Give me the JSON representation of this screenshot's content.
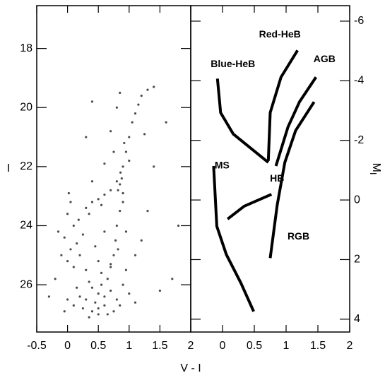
{
  "chart_data": [
    {
      "type": "scatter",
      "ylabel": "I",
      "xlabel": "V - I",
      "color": "#000000",
      "y_inverted": true,
      "xlim": [
        -0.5,
        2
      ],
      "ylim": [
        16.55,
        27.6
      ],
      "xticks": [
        -0.5,
        0,
        0.5,
        1,
        1.5,
        2
      ],
      "yticks": [
        18,
        20,
        22,
        24,
        26
      ],
      "x": [
        0.5,
        0.4,
        0.6,
        0.3,
        0.7,
        0.55,
        0.45,
        0.35,
        0.65,
        0.2,
        0.8,
        0.25,
        0.75,
        0.5,
        0.6,
        0.4,
        0.15,
        0.9,
        0.1,
        0.85,
        0.55,
        0.3,
        0.7,
        1.0,
        0.0,
        0.5,
        0.35,
        0.65,
        1.1,
        -0.05,
        0.0,
        0.05,
        -0.05,
        0.1,
        0.0,
        0.05,
        -0.1,
        0.15,
        0.1,
        0.2,
        0.02,
        0.25,
        -0.15,
        0.18,
        0.3,
        0.4,
        0.5,
        0.6,
        0.7,
        0.35,
        0.55,
        0.85,
        0.82,
        0.88,
        0.8,
        0.9,
        0.86,
        0.85,
        0.8,
        0.78,
        0.75,
        0.9,
        0.82,
        0.7,
        0.95,
        1.1,
        1.2,
        0.95,
        0.9,
        0.95,
        1.0,
        1.05,
        1.1,
        1.15,
        1.2,
        1.3,
        1.0,
        0.92,
        0.75,
        0.7,
        0.8,
        0.85,
        0.6,
        1.25,
        1.4,
        0.4,
        1.6,
        1.5,
        1.7,
        1.3,
        -0.3,
        -0.2,
        0.4,
        1.4,
        0.3,
        1.8,
        0.6,
        0.45,
        0.5
      ],
      "y": [
        26.3,
        26.1,
        26.4,
        26.5,
        26.2,
        26.0,
        26.6,
        25.9,
        25.8,
        26.4,
        26.5,
        26.8,
        26.9,
        26.8,
        26.7,
        26.9,
        26.1,
        26.0,
        26.7,
        26.7,
        25.6,
        25.5,
        25.4,
        26.3,
        26.5,
        27.0,
        27.1,
        27.0,
        26.6,
        26.9,
        25.2,
        24.8,
        24.4,
        24.0,
        23.6,
        23.2,
        25.0,
        24.6,
        25.4,
        25.0,
        22.9,
        24.3,
        24.2,
        23.8,
        23.4,
        23.2,
        23.1,
        22.95,
        22.8,
        23.6,
        23.3,
        22.6,
        22.8,
        22.4,
        22.5,
        22.9,
        22.2,
        23.5,
        24.0,
        24.5,
        25.0,
        23.2,
        24.8,
        25.3,
        24.2,
        25.0,
        24.5,
        25.5,
        22.0,
        21.5,
        21.0,
        20.5,
        20.2,
        19.9,
        19.6,
        19.4,
        21.8,
        21.2,
        21.5,
        20.8,
        20.0,
        19.5,
        21.9,
        20.9,
        19.3,
        19.8,
        20.5,
        26.2,
        25.8,
        23.5,
        26.4,
        25.8,
        22.5,
        22.0,
        21.0,
        24.0,
        24.2,
        24.7,
        25.2
      ]
    },
    {
      "type": "line",
      "ylabel": "M",
      "ylabel_subscript": "I",
      "color": "#000000",
      "y_inverted": true,
      "xlim": [
        -0.5,
        2
      ],
      "ylim": [
        -6.52,
        4.43
      ],
      "xticks": [
        0,
        0.5,
        1,
        1.5,
        2
      ],
      "yticks": [
        -6,
        -4,
        -2,
        0,
        2,
        4
      ],
      "series": [
        {
          "name": "MS",
          "x": [
            -0.14,
            -0.09,
            0.06,
            0.29,
            0.49
          ],
          "values": [
            -1.14,
            0.88,
            1.83,
            2.79,
            3.74
          ]
        },
        {
          "name": "HB",
          "x": [
            0.08,
            0.34,
            0.77
          ],
          "values": [
            0.64,
            0.21,
            -0.19
          ]
        },
        {
          "name": "Blue-HeB",
          "x": [
            -0.08,
            -0.03,
            0.17,
            0.72
          ],
          "values": [
            -4.07,
            -2.93,
            -2.21,
            -1.26
          ]
        },
        {
          "name": "Red-HeB",
          "x": [
            0.72,
            0.75,
            0.92,
            1.18
          ],
          "values": [
            -1.31,
            -2.93,
            -4.12,
            -5.02
          ]
        },
        {
          "name": "RGB",
          "x": [
            0.75,
            0.86,
            0.98,
            1.15,
            1.44
          ],
          "values": [
            1.95,
            0.17,
            -1.26,
            -2.33,
            -3.29
          ]
        },
        {
          "name": "AGB",
          "x": [
            0.84,
            1.03,
            1.21,
            1.47
          ],
          "values": [
            -1.14,
            -2.45,
            -3.29,
            -4.12
          ]
        }
      ]
    }
  ]
}
